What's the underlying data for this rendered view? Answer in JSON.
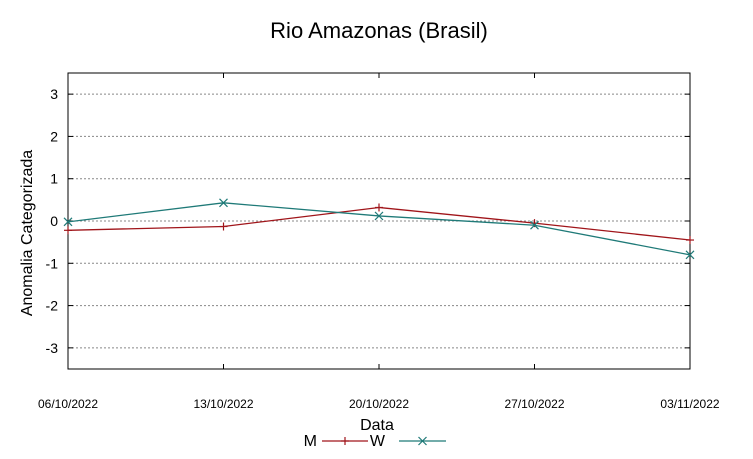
{
  "chart_data": {
    "type": "line",
    "title": "Rio Amazonas (Brasil)",
    "xlabel": "Data",
    "ylabel": "Anomalia Categorizada",
    "categories": [
      "06/10/2022",
      "13/10/2022",
      "20/10/2022",
      "27/10/2022",
      "03/11/2022"
    ],
    "ylim": [
      -3.5,
      3.5
    ],
    "yticks": [
      -3,
      -2,
      -1,
      0,
      1,
      2,
      3
    ],
    "grid": true,
    "legend_position": "bottom-center",
    "series": [
      {
        "name": "M",
        "marker": "+",
        "color": "#a0151a",
        "values": [
          -0.22,
          -0.13,
          0.32,
          -0.05,
          -0.45
        ]
      },
      {
        "name": "W",
        "marker": "x",
        "color": "#1f7a78",
        "values": [
          -0.02,
          0.43,
          0.12,
          -0.1,
          -0.8
        ]
      }
    ]
  }
}
